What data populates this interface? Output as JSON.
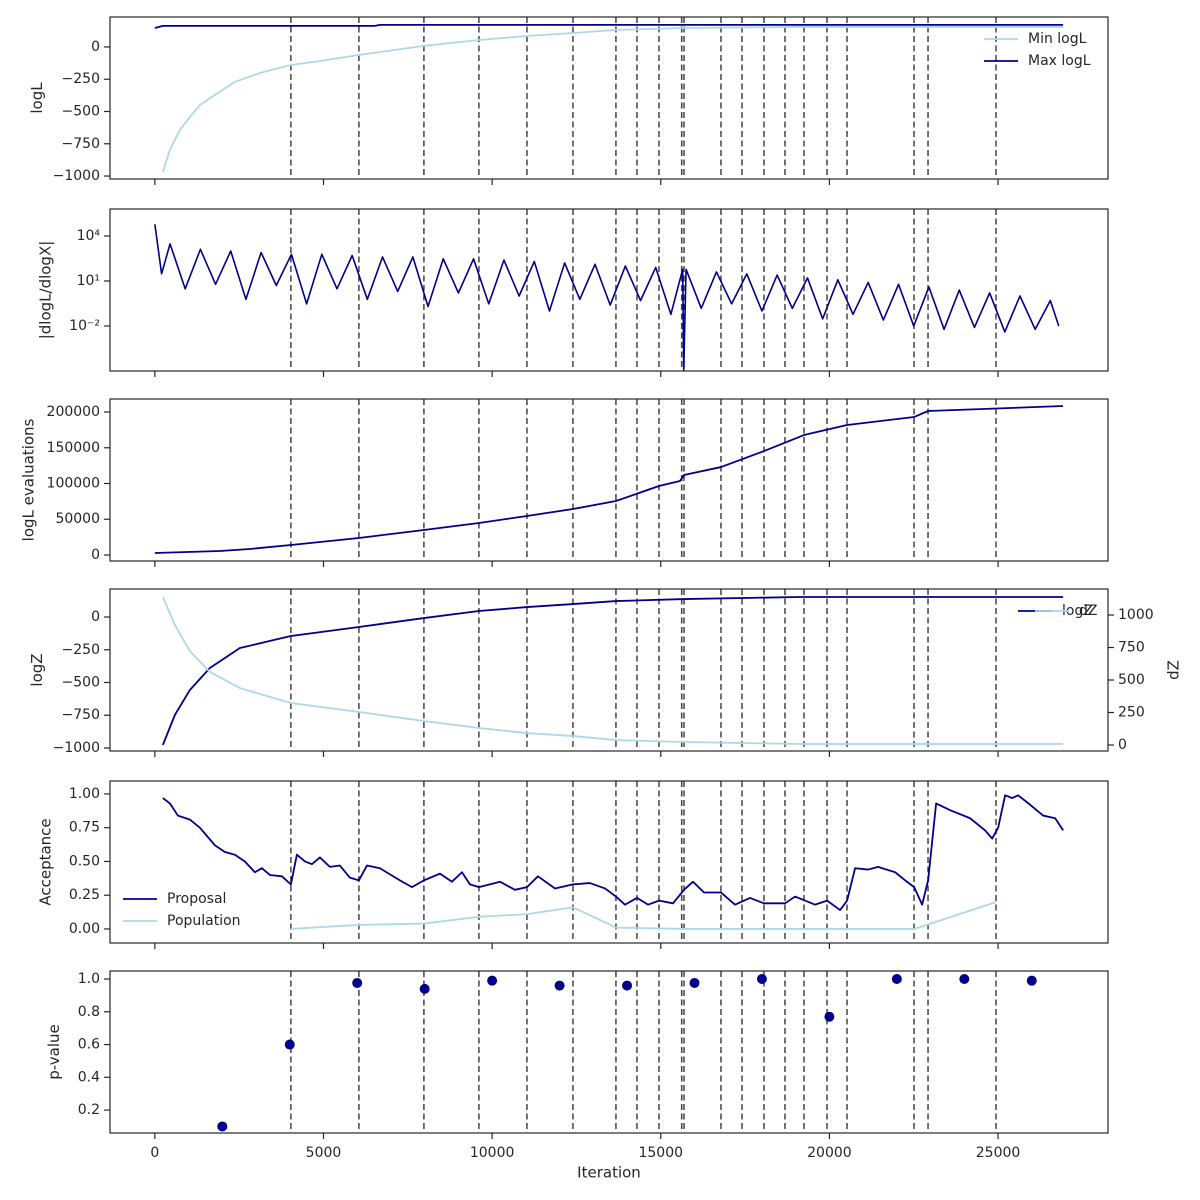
{
  "chart_data": [
    {
      "type": "line",
      "ylabel": "logL",
      "ylim": [
        -1023,
        232
      ],
      "yticks": [
        {
          "value": -1000,
          "label": "−1000"
        },
        {
          "value": -750,
          "label": "−750"
        },
        {
          "value": -500,
          "label": "−500"
        },
        {
          "value": -250,
          "label": "−250"
        },
        0
      ],
      "legend": "upper right",
      "vlines": [
        4033,
        6050,
        7977,
        9608,
        11032,
        12396,
        13671,
        14294,
        14947,
        15620,
        15688,
        16785,
        17408,
        18060,
        18683,
        19247,
        19929,
        20522,
        22509,
        22924,
        24940
      ],
      "series": [
        {
          "name": "Min logL",
          "color": "#add8e6",
          "x": [
            237,
            445,
            741,
            1038,
            1335,
            1779,
            2372,
            3114,
            4033,
            4893,
            6050,
            7977,
            9608,
            11032,
            12396,
            13671,
            15688,
            19128,
            26928
          ],
          "values": [
            -969,
            -798,
            -643,
            -543,
            -450,
            -372,
            -271,
            -202,
            -140,
            -109,
            -62,
            8,
            54,
            85,
            108,
            132,
            147,
            155,
            155
          ]
        },
        {
          "name": "Max logL",
          "color": "#00008b",
          "x": [
            0,
            237,
            6524,
            6673,
            26928
          ],
          "values": [
            147,
            163,
            163,
            171,
            171
          ]
        }
      ]
    },
    {
      "type": "line",
      "ylabel": "|dlogL/dlogX|",
      "yscale": "log",
      "ylim": [
        1e-05,
        630000
      ],
      "yticks": [
        {
          "value": 0.01,
          "label": "10⁻²"
        },
        {
          "value": 10,
          "label": "10¹"
        },
        {
          "value": 10000,
          "label": "10⁴"
        }
      ],
      "series": [
        {
          "color": "#00008b",
          "x": [
            0,
            200,
            450,
            900,
            1350,
            1800,
            2250,
            2700,
            3150,
            3600,
            4050,
            4500,
            4950,
            5400,
            5850,
            6300,
            6750,
            7200,
            7650,
            8100,
            8550,
            9000,
            9450,
            9900,
            10350,
            10800,
            11250,
            11700,
            12150,
            12600,
            13050,
            13500,
            13950,
            14400,
            14850,
            15300,
            15650,
            15680,
            15750,
            16200,
            16650,
            17100,
            17550,
            18000,
            18450,
            18900,
            19350,
            19800,
            20250,
            20700,
            21150,
            21600,
            22050,
            22500,
            22950,
            23400,
            23850,
            24300,
            24750,
            25200,
            25650,
            26100,
            26550,
            26800
          ],
          "values": [
            60000,
            30,
            3000,
            3,
            1300,
            6,
            1000,
            0.6,
            800,
            5,
            600,
            0.3,
            600,
            3,
            500,
            0.6,
            400,
            2,
            400,
            0.2,
            300,
            1.6,
            300,
            0.3,
            250,
            1,
            200,
            0.1,
            160,
            0.6,
            130,
            0.25,
            100,
            0.5,
            80,
            0.06,
            60,
            1e-05,
            60,
            0.15,
            40,
            0.3,
            30,
            0.1,
            25,
            0.15,
            16,
            0.03,
            12,
            0.06,
            8,
            0.025,
            6,
            0.01,
            4,
            0.006,
            2.5,
            0.008,
            1.6,
            0.004,
            1,
            0.006,
            0.5,
            0.01
          ]
        }
      ]
    },
    {
      "type": "line",
      "ylabel": "logL evaluations",
      "ylim": [
        -8400,
        218200
      ],
      "yticks": [
        0,
        50000,
        100000,
        150000,
        200000
      ],
      "series": [
        {
          "color": "#00008b",
          "x": [
            0,
            1928,
            2817,
            4033,
            6050,
            7977,
            9608,
            11032,
            12396,
            13671,
            14947,
            15569,
            15688,
            16785,
            18060,
            19247,
            20522,
            22509,
            22924,
            26928
          ],
          "values": [
            2800,
            5600,
            8400,
            14000,
            23800,
            35000,
            44800,
            54500,
            64300,
            75500,
            96500,
            103500,
            111900,
            123000,
            145400,
            167800,
            181800,
            193000,
            201400,
            208400
          ]
        }
      ]
    },
    {
      "type": "line",
      "ylabel": "logZ",
      "y2label": "dZ",
      "ylim": [
        -1023,
        214
      ],
      "yticks": [
        {
          "value": -1000,
          "label": "−1000"
        },
        {
          "value": -750,
          "label": "−750"
        },
        {
          "value": -500,
          "label": "−500"
        },
        {
          "value": -250,
          "label": "−250"
        },
        0
      ],
      "y2lim": [
        -46,
        1200
      ],
      "y2ticks": [
        0,
        250,
        500,
        750,
        1000
      ],
      "legend": "upper right",
      "series": [
        {
          "name": "logZ",
          "color": "#00008b",
          "x": [
            237,
            593,
            1038,
            1631,
            2521,
            4033,
            6050,
            7977,
            9608,
            11032,
            12396,
            13671,
            15688,
            19128,
            26928
          ],
          "values": [
            -977,
            -748,
            -557,
            -389,
            -237,
            -145,
            -76,
            -8,
            46,
            76,
            99,
            122,
            137,
            153,
            153
          ]
        },
        {
          "name": "dZ",
          "color": "#add8e6",
          "axis": "y2",
          "x": [
            237,
            593,
            1038,
            1631,
            2521,
            4033,
            6050,
            7977,
            9608,
            11032,
            12396,
            13671,
            15688,
            19128,
            26928
          ],
          "values": [
            1138,
            923,
            723,
            562,
            438,
            323,
            254,
            185,
            131,
            92,
            69,
            38,
            23,
            8,
            8
          ]
        }
      ]
    },
    {
      "type": "line",
      "ylabel": "Acceptance",
      "ylim": [
        -0.104,
        1.096
      ],
      "yticks": [
        {
          "value": 0,
          "label": "0.00"
        },
        {
          "value": 0.25,
          "label": "0.25"
        },
        {
          "value": 0.5,
          "label": "0.50"
        },
        {
          "value": 0.75,
          "label": "0.75"
        },
        {
          "value": 1,
          "label": "1.00"
        }
      ],
      "legend": "lower left",
      "series": [
        {
          "name": "Proposal",
          "color": "#00008b",
          "x": [
            237,
            445,
            682,
            1038,
            1335,
            1779,
            2076,
            2372,
            2669,
            2966,
            3173,
            3411,
            3767,
            4033,
            4211,
            4449,
            4656,
            4893,
            5190,
            5486,
            5783,
            6050,
            6288,
            6673,
            7266,
            7622,
            7978,
            8453,
            8809,
            9105,
            9343,
            9610,
            9936,
            10232,
            10677,
            11033,
            11360,
            11864,
            12397,
            12901,
            13346,
            13672,
            13939,
            14295,
            14622,
            14948,
            15363,
            15689,
            15956,
            16283,
            16787,
            17202,
            17647,
            18062,
            18685,
            18982,
            19575,
            19931,
            20317,
            20524,
            20762,
            21147,
            21444,
            21948,
            22245,
            22512,
            22749,
            22927,
            23164,
            23579,
            24172,
            24617,
            24825,
            25003,
            25210,
            25418,
            25596,
            25952,
            26337,
            26693,
            26930
          ],
          "values": [
            0.97,
            0.93,
            0.84,
            0.81,
            0.75,
            0.62,
            0.57,
            0.55,
            0.5,
            0.42,
            0.45,
            0.4,
            0.39,
            0.33,
            0.55,
            0.5,
            0.48,
            0.53,
            0.46,
            0.47,
            0.38,
            0.36,
            0.47,
            0.45,
            0.36,
            0.31,
            0.36,
            0.41,
            0.35,
            0.42,
            0.33,
            0.31,
            0.33,
            0.35,
            0.29,
            0.31,
            0.39,
            0.3,
            0.33,
            0.34,
            0.3,
            0.24,
            0.18,
            0.23,
            0.18,
            0.21,
            0.19,
            0.29,
            0.35,
            0.27,
            0.27,
            0.18,
            0.23,
            0.19,
            0.19,
            0.24,
            0.18,
            0.21,
            0.14,
            0.21,
            0.45,
            0.44,
            0.46,
            0.42,
            0.36,
            0.31,
            0.18,
            0.36,
            0.93,
            0.88,
            0.82,
            0.73,
            0.67,
            0.75,
            0.99,
            0.97,
            0.99,
            0.92,
            0.84,
            0.82,
            0.73
          ]
        },
        {
          "name": "Population",
          "color": "#add8e6",
          "x": [
            4033,
            6050,
            7978,
            9610,
            11033,
            12397,
            13672,
            15689,
            22512,
            24943
          ],
          "values": [
            0,
            0.03,
            0.04,
            0.09,
            0.11,
            0.16,
            0.01,
            0,
            0,
            0.2
          ]
        }
      ]
    },
    {
      "type": "scatter",
      "ylabel": "p-value",
      "xlabel": "Iteration",
      "ylim": [
        0.06,
        1.049
      ],
      "yticks": [
        0.2,
        0.4,
        0.6,
        0.8,
        {
          "value": 1,
          "label": "1.0"
        }
      ],
      "xlim": [
        -1330,
        28260
      ],
      "xticks": [
        0,
        5000,
        10000,
        15000,
        20000,
        25000
      ],
      "series": [
        {
          "color": "#00008b",
          "x": [
            2000,
            4000,
            6000,
            8000,
            10000,
            12000,
            14000,
            16000,
            18000,
            20000,
            22000,
            24000,
            26000
          ],
          "values": [
            0.1,
            0.6,
            0.976,
            0.94,
            0.99,
            0.96,
            0.96,
            0.976,
            1,
            0.77,
            1,
            1,
            0.99
          ]
        }
      ]
    }
  ]
}
